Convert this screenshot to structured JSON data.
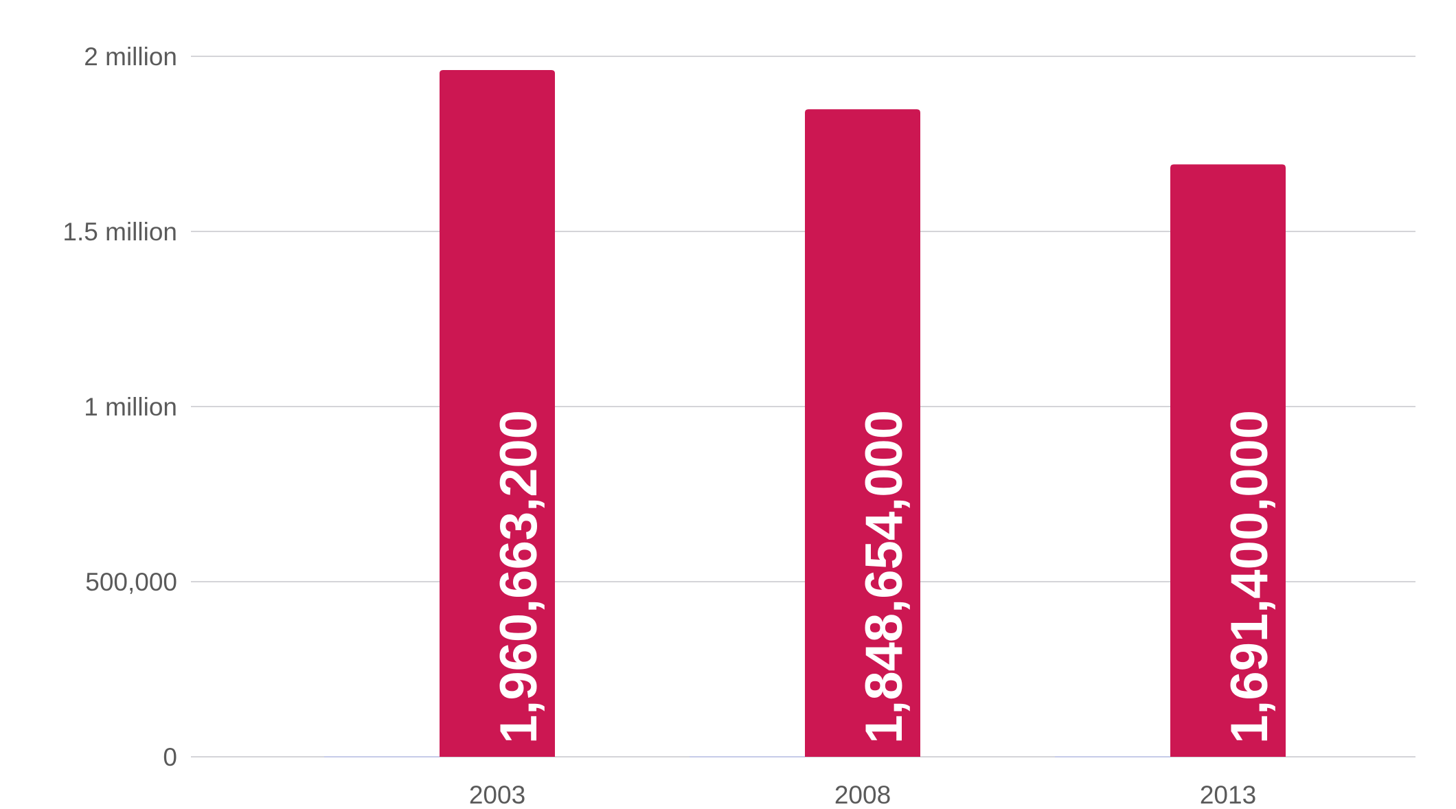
{
  "chart_data": {
    "type": "bar",
    "categories": [
      "2003",
      "2008",
      "2013"
    ],
    "series": [
      {
        "values": [
          0,
          0,
          0
        ],
        "color": "#c6cbe8"
      },
      {
        "values": [
          1960663.2,
          1848654,
          1691400
        ],
        "data_labels": [
          "1,960,663,200",
          "1,848,654,000",
          "1,691,400,000"
        ],
        "color": "#cc1752"
      }
    ],
    "yticks": [
      0,
      500000,
      1000000,
      1500000,
      2000000
    ],
    "ytick_labels": [
      "0",
      "500,000",
      "1 million",
      "1.5 million",
      "2 million"
    ],
    "ylim": [
      0,
      2000000
    ],
    "grid": true,
    "legend": "none"
  }
}
